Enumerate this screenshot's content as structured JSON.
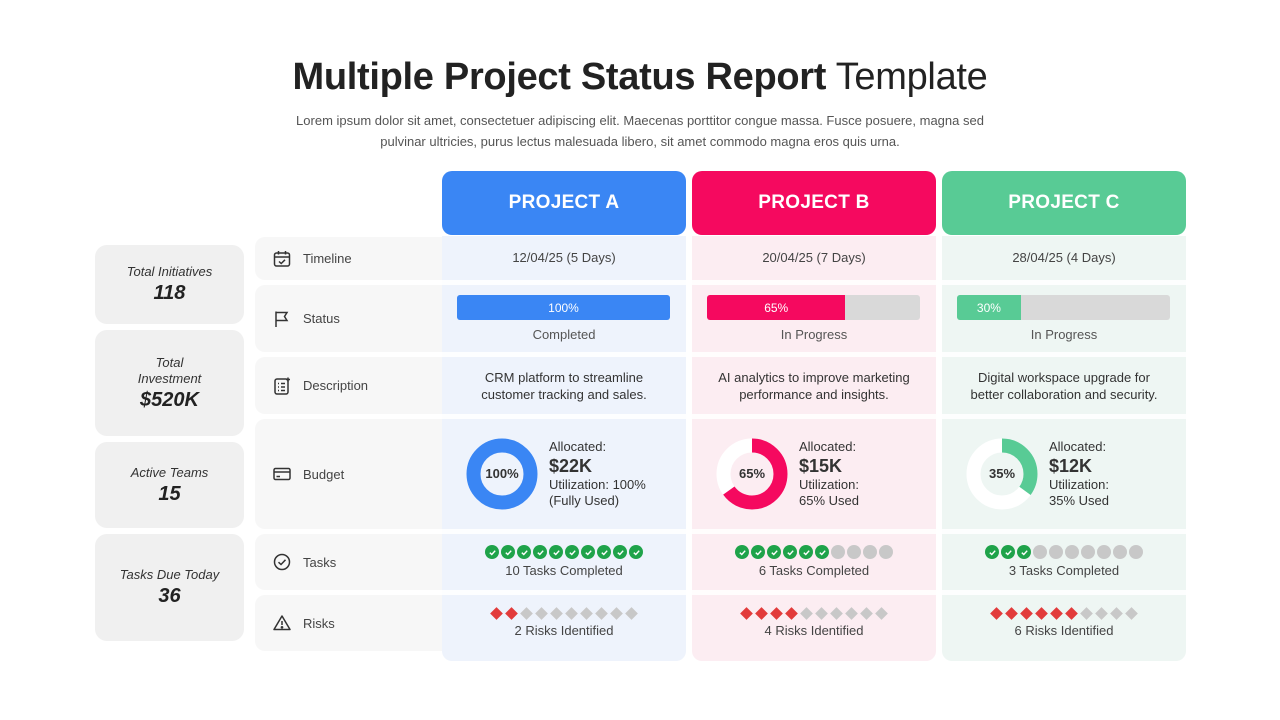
{
  "header": {
    "title_bold": "Multiple Project Status Report",
    "title_light": "Template",
    "subtitle": "Lorem ipsum dolor sit amet, consectetuer adipiscing elit. Maecenas porttitor congue massa. Fusce posuere, magna sed pulvinar ultricies, purus lectus malesuada libero, sit amet commodo magna eros quis urna."
  },
  "stats": [
    {
      "label": "Total Initiatives",
      "value": "118"
    },
    {
      "label": "Total Investment",
      "value": "$520K"
    },
    {
      "label": "Active Teams",
      "value": "15"
    },
    {
      "label": "Tasks Due Today",
      "value": "36"
    }
  ],
  "rows": {
    "timeline": {
      "label": "Timeline",
      "icon": "calendar-check-icon"
    },
    "status": {
      "label": "Status",
      "icon": "flag-icon"
    },
    "description": {
      "label": "Description",
      "icon": "checklist-icon"
    },
    "budget": {
      "label": "Budget",
      "icon": "card-icon"
    },
    "tasks": {
      "label": "Tasks",
      "icon": "check-circle-icon"
    },
    "risks": {
      "label": "Risks",
      "icon": "warning-icon"
    }
  },
  "projects": [
    {
      "name": "PROJECT A",
      "color": "#3a86f4",
      "timeline": "12/04/25 (5 Days)",
      "progress": 100,
      "progress_label": "100%",
      "status": "Completed",
      "description": "CRM platform to streamline customer tracking and sales.",
      "donut_label": "100%",
      "utilization": 100,
      "allocated_label": "Allocated:",
      "allocated": "$22K",
      "util_line1": "Utilization: 100%",
      "util_line2": "(Fully Used)",
      "tasks_done": 10,
      "tasks_total": 10,
      "tasks_caption": "10 Tasks Completed",
      "risks_on": 2,
      "risks_total": 10,
      "risks_caption": "2 Risks Identified"
    },
    {
      "name": "PROJECT B",
      "color": "#f5095f",
      "timeline": "20/04/25 (7 Days)",
      "progress": 65,
      "progress_label": "65%",
      "status": "In Progress",
      "description": "AI analytics to improve marketing performance and insights.",
      "donut_label": "65%",
      "utilization": 65,
      "allocated_label": "Allocated:",
      "allocated": "$15K",
      "util_line1": "Utilization:",
      "util_line2": "65% Used",
      "tasks_done": 6,
      "tasks_total": 10,
      "tasks_caption": "6 Tasks Completed",
      "risks_on": 4,
      "risks_total": 10,
      "risks_caption": "4 Risks Identified"
    },
    {
      "name": "PROJECT C",
      "color": "#58cb95",
      "timeline": "28/04/25 (4 Days)",
      "progress": 30,
      "progress_label": "30%",
      "status": "In Progress",
      "description": "Digital workspace upgrade for better collaboration and security.",
      "donut_label": "35%",
      "utilization": 35,
      "allocated_label": "Allocated:",
      "allocated": "$12K",
      "util_line1": "Utilization:",
      "util_line2": "35% Used",
      "tasks_done": 3,
      "tasks_total": 10,
      "tasks_caption": "3 Tasks Completed",
      "risks_on": 6,
      "risks_total": 10,
      "risks_caption": "6 Risks Identified"
    }
  ]
}
